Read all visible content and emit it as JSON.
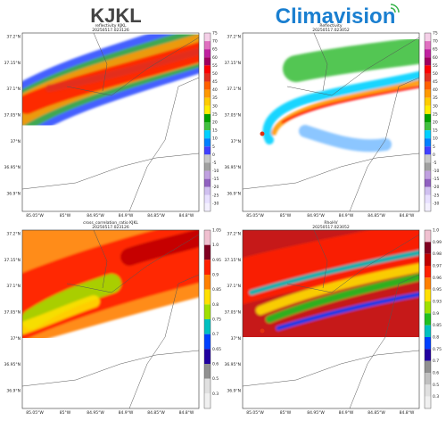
{
  "header": {
    "left": "KJKL",
    "right": "Climavision"
  },
  "panels": [
    {
      "title": "reflectivity KJKL",
      "time": "20250517.023126",
      "yticks": [
        "37.2°N",
        "37.15°N",
        "37.1°N",
        "37.05°N",
        "37°N",
        "36.95°N",
        "36.9°N"
      ],
      "xticks": [
        "85.05°W",
        "85°W",
        "84.95°W",
        "84.9°W",
        "84.85°W",
        "84.8°W"
      ],
      "colorbar": [
        "75",
        "70",
        "65",
        "60",
        "55",
        "50",
        "45",
        "40",
        "35",
        "30",
        "25",
        "20",
        "15",
        "10",
        "5",
        "0",
        "-5",
        "-10",
        "-15",
        "-20",
        "-25",
        "-30"
      ]
    },
    {
      "title": "Reflectivity",
      "time": "20250517.023052",
      "yticks": [
        "37.2°N",
        "37.15°N",
        "37.1°N",
        "37.05°N",
        "37°N",
        "36.95°N",
        "36.9°N"
      ],
      "xticks": [
        "85.05°W",
        "85°W",
        "84.95°W",
        "84.9°W",
        "84.85°W",
        "84.8°W"
      ],
      "colorbar": [
        "75",
        "70",
        "65",
        "60",
        "55",
        "50",
        "45",
        "40",
        "35",
        "30",
        "25",
        "20",
        "15",
        "10",
        "5",
        "0",
        "-5",
        "-10",
        "-15",
        "-20",
        "-25",
        "-30"
      ]
    },
    {
      "title": "cross_correlation_ratio KJKL",
      "time": "20250517.023126",
      "yticks": [
        "37.2°N",
        "37.15°N",
        "37.1°N",
        "37.05°N",
        "37°N",
        "36.95°N",
        "36.9°N"
      ],
      "xticks": [
        "85.05°W",
        "85°W",
        "84.95°W",
        "84.9°W",
        "84.85°W",
        "84.8°W"
      ],
      "colorbar": [
        "1.05",
        "1.0",
        "0.95",
        "0.9",
        "0.85",
        "0.8",
        "0.75",
        "0.7",
        "0.65",
        "0.6",
        "0.5",
        "0.3"
      ]
    },
    {
      "title": "RhoHV",
      "time": "20250517.023052",
      "yticks": [
        "37.2°N",
        "37.15°N",
        "37.1°N",
        "37.05°N",
        "37°N",
        "36.95°N",
        "36.9°N"
      ],
      "xticks": [
        "85.05°W",
        "85°W",
        "84.95°W",
        "84.9°W",
        "84.85°W",
        "84.8°W"
      ],
      "colorbar": [
        "1.0",
        "0.99",
        "0.98",
        "0.97",
        "0.96",
        "0.95",
        "0.93",
        "0.9",
        "0.85",
        "0.8",
        "0.75",
        "0.7",
        "0.6",
        "0.5",
        "0.3"
      ]
    }
  ]
}
